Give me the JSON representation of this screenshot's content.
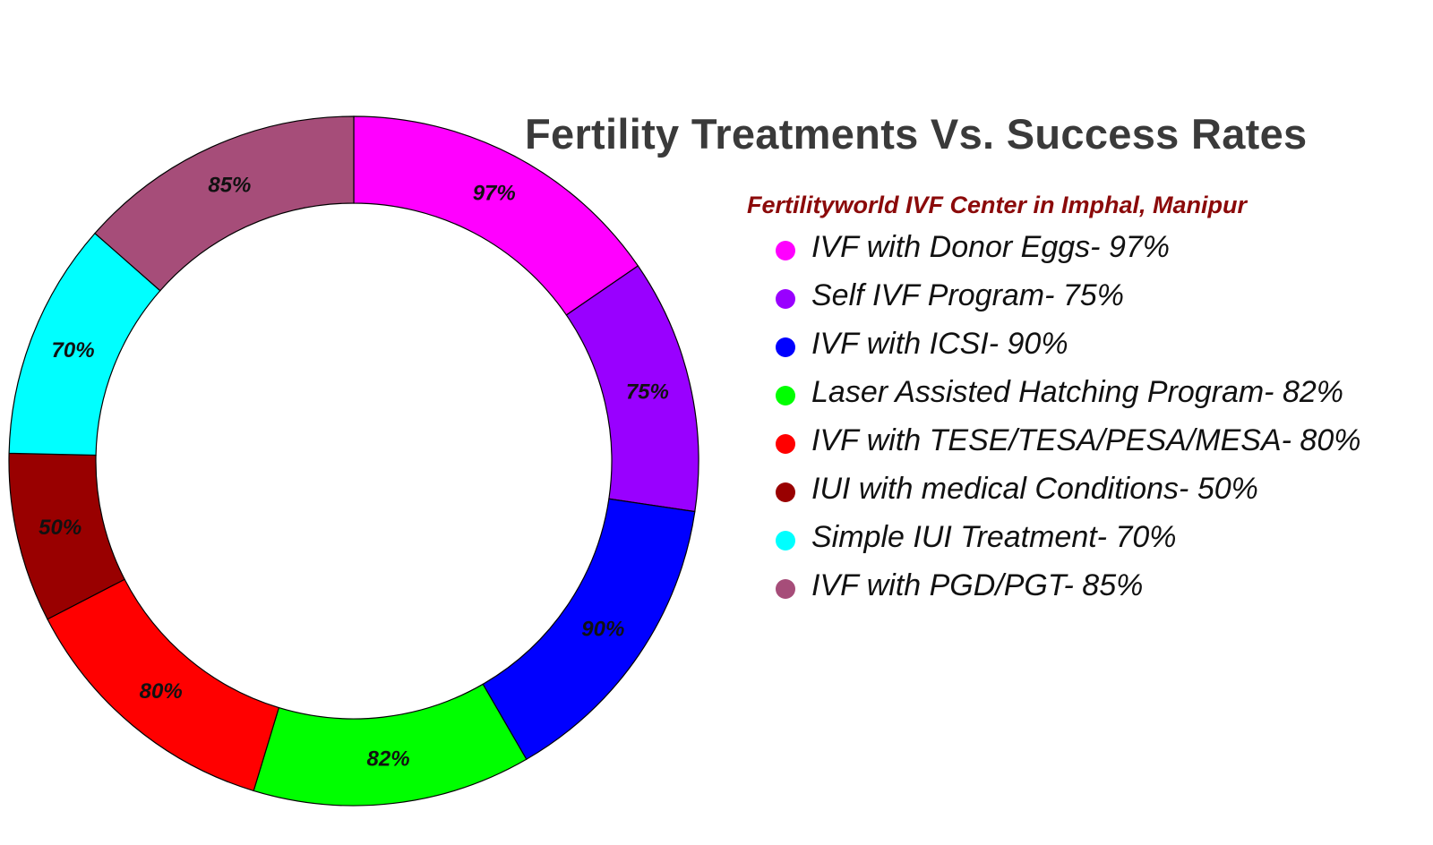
{
  "chart_data": {
    "type": "pie",
    "title": "Fertility Treatments Vs. Success Rates",
    "subtitle": "Fertilityworld IVF Center in Imphal, Manipur",
    "subtitle_color": "#8b0a0a",
    "start_at": "top",
    "slices": [
      {
        "name": "IVF with Donor Eggs",
        "value": 97,
        "label": "97%",
        "legend": "IVF with Donor Eggs- 97%",
        "color": "#ff00ff"
      },
      {
        "name": "Self IVF Program",
        "value": 75,
        "label": "75%",
        "legend": "Self IVF Program- 75%",
        "color": "#9900ff"
      },
      {
        "name": "IVF with ICSI",
        "value": 90,
        "label": "90%",
        "legend": "IVF with ICSI- 90%",
        "color": "#0000ff"
      },
      {
        "name": "Laser Assisted Hatching Program",
        "value": 82,
        "label": "82%",
        "legend": "Laser Assisted Hatching Program- 82%",
        "color": "#00ff00"
      },
      {
        "name": "IVF with TESE/TESA/PESA/MESA",
        "value": 80,
        "label": "80%",
        "legend": "IVF with TESE/TESA/PESA/MESA- 80%",
        "color": "#ff0000"
      },
      {
        "name": "IUI with medical Conditions",
        "value": 50,
        "label": "50%",
        "legend": "IUI with medical Conditions- 50%",
        "color": "#990000"
      },
      {
        "name": "Simple IUI Treatment",
        "value": 70,
        "label": "70%",
        "legend": "Simple IUI Treatment- 70%",
        "color": "#00ffff"
      },
      {
        "name": "IVF with PGD/PGT",
        "value": 85,
        "label": "85%",
        "legend": "IVF with PGD/PGT- 85%",
        "color": "#a64d79"
      }
    ]
  }
}
